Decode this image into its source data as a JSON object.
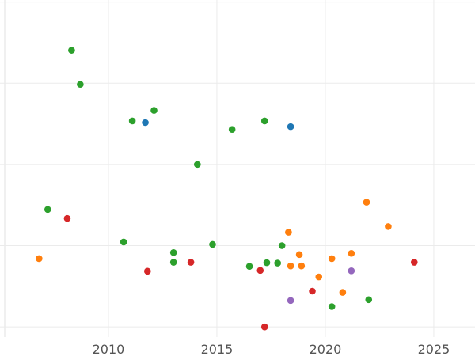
{
  "chart_data": {
    "type": "scatter",
    "title": "",
    "xlabel": "",
    "ylabel": "",
    "xlim": [
      2005.0,
      2026.9
    ],
    "ylim": [
      0,
      8.3
    ],
    "x_ticks": [
      2010,
      2015,
      2020,
      2025
    ],
    "x_tick_labels": [
      "2010",
      "2015",
      "2020",
      "2025"
    ],
    "y_gridlines": [
      0.25,
      2.25,
      4.25,
      6.25,
      8.25
    ],
    "grid": true,
    "legend": "none",
    "colors": {
      "green": "#2ca02c",
      "blue": "#1f77b4",
      "red": "#d62728",
      "orange": "#ff7f0e",
      "purple": "#9467bd"
    },
    "series": [
      {
        "color": "#2ca02c",
        "points": [
          [
            2008.3,
            7.06
          ],
          [
            2008.7,
            6.22
          ],
          [
            2011.1,
            5.32
          ],
          [
            2012.1,
            5.58
          ],
          [
            2015.7,
            5.11
          ],
          [
            2017.2,
            5.32
          ],
          [
            2014.1,
            4.25
          ],
          [
            2007.2,
            3.14
          ],
          [
            2010.7,
            2.34
          ],
          [
            2013.0,
            2.08
          ],
          [
            2013.0,
            1.84
          ],
          [
            2014.8,
            2.28
          ],
          [
            2016.5,
            1.74
          ],
          [
            2017.3,
            1.83
          ],
          [
            2017.8,
            1.82
          ],
          [
            2018.0,
            2.25
          ],
          [
            2022.0,
            0.92
          ],
          [
            2020.3,
            0.75
          ]
        ]
      },
      {
        "color": "#1f77b4",
        "points": [
          [
            2011.7,
            5.28
          ],
          [
            2018.4,
            5.18
          ]
        ]
      },
      {
        "color": "#d62728",
        "points": [
          [
            2008.1,
            2.92
          ],
          [
            2011.8,
            1.62
          ],
          [
            2013.8,
            1.84
          ],
          [
            2017.0,
            1.64
          ],
          [
            2019.4,
            1.13
          ],
          [
            2024.1,
            1.84
          ],
          [
            2017.2,
            0.25
          ]
        ]
      },
      {
        "color": "#ff7f0e",
        "points": [
          [
            2006.8,
            1.93
          ],
          [
            2018.3,
            2.58
          ],
          [
            2018.8,
            2.03
          ],
          [
            2018.4,
            1.75
          ],
          [
            2018.9,
            1.75
          ],
          [
            2019.7,
            1.48
          ],
          [
            2020.3,
            1.93
          ],
          [
            2021.2,
            2.06
          ],
          [
            2021.9,
            3.32
          ],
          [
            2022.9,
            2.72
          ],
          [
            2020.8,
            1.1
          ]
        ]
      },
      {
        "color": "#9467bd",
        "points": [
          [
            2021.2,
            1.63
          ],
          [
            2018.4,
            0.9
          ]
        ]
      }
    ]
  }
}
